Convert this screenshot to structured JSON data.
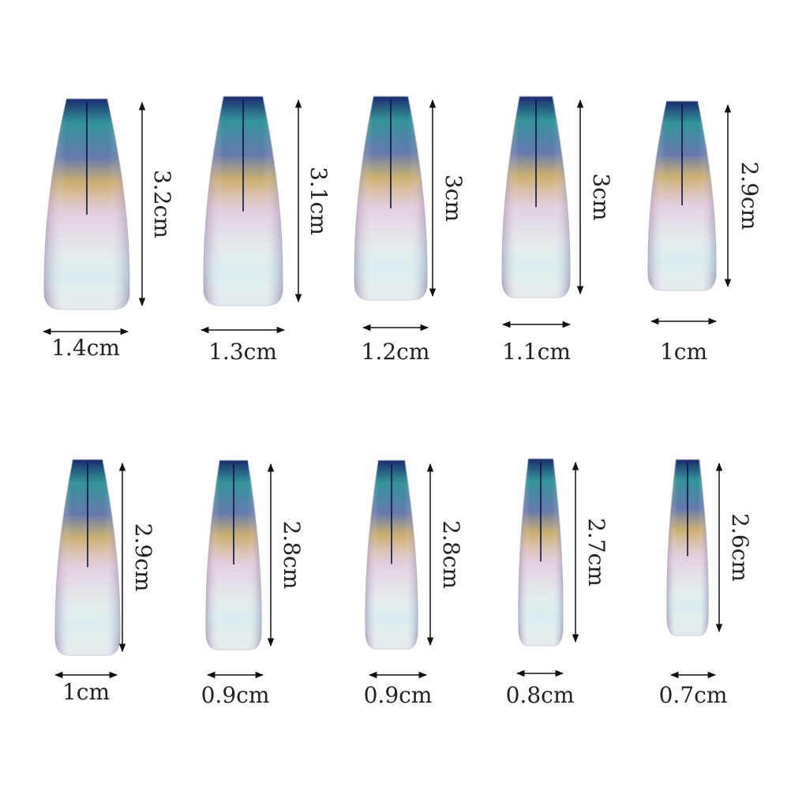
{
  "nails": [
    {
      "width_label": "1.4cm",
      "length_label": "3.2cm"
    },
    {
      "width_label": "1.3cm",
      "length_label": "3.1cm"
    },
    {
      "width_label": "1.2cm",
      "length_label": "3cm"
    },
    {
      "width_label": "1.1cm",
      "length_label": "3cm"
    },
    {
      "width_label": "1cm",
      "length_label": "2.9cm"
    },
    {
      "width_label": "1cm",
      "length_label": "2.9cm"
    },
    {
      "width_label": "0.9cm",
      "length_label": "2.8cm"
    },
    {
      "width_label": "0.9cm",
      "length_label": "2.8cm"
    },
    {
      "width_label": "0.8cm",
      "length_label": "2.7cm"
    },
    {
      "width_label": "0.7cm",
      "length_label": "2.6cm"
    }
  ],
  "colors": {
    "tip_dark": "#1b2a6e",
    "teal": "#1f8a8f",
    "gold": "#b99a3a",
    "violet": "#8a3d7a",
    "pearl": "#e8eef0",
    "arrow": "#111111",
    "text": "#222222"
  }
}
